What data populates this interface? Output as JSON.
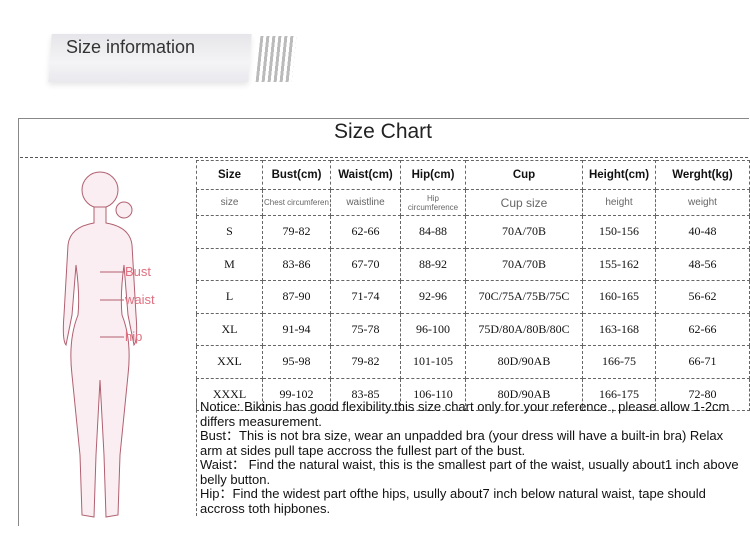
{
  "banner": "Size information",
  "title": "Size Chart",
  "figure": {
    "labels": [
      "Bust",
      "waist",
      "hip"
    ],
    "accent": "#e07080"
  },
  "table": {
    "headers": [
      "Size",
      "Bust(cm)",
      "Waist(cm)",
      "Hip(cm)",
      "Cup",
      "Height(cm)",
      "Werght(kg)"
    ],
    "subheaders": [
      "size",
      "Chest circumferen",
      "waistline",
      "Hip circumference",
      "Cup size",
      "height",
      "weight"
    ],
    "rows": [
      [
        "S",
        "79-82",
        "62-66",
        "84-88",
        "70A/70B",
        "150-156",
        "40-48"
      ],
      [
        "M",
        "83-86",
        "67-70",
        "88-92",
        "70A/70B",
        "155-162",
        "48-56"
      ],
      [
        "L",
        "87-90",
        "71-74",
        "92-96",
        "70C/75A/75B/75C",
        "160-165",
        "56-62"
      ],
      [
        "XL",
        "91-94",
        "75-78",
        "96-100",
        "75D/80A/80B/80C",
        "163-168",
        "62-66"
      ],
      [
        "XXL",
        "95-98",
        "79-82",
        "101-105",
        "80D/90AB",
        "166-75",
        "66-71"
      ],
      [
        "XXXL",
        "99-102",
        "83-85",
        "106-110",
        "80D/90AB",
        "166-175",
        "72-80"
      ]
    ]
  },
  "notes": [
    "Notice: Bikinis has good flexibility.this size chart only for your reference , please allow 1-2cm differs measurement.",
    "Bust：This is not bra size, wear an unpadded bra (your dress will have a built-in bra) Relax arm at sides pull tape accross the fullest part of the bust.",
    "Waist： Find the natural waist, this is the smallest part of the waist, usually about1 inch above belly button.",
    "Hip：Find the widest part ofthe hips, usully about7 inch below natural waist, tape should accross toth hipbones."
  ]
}
